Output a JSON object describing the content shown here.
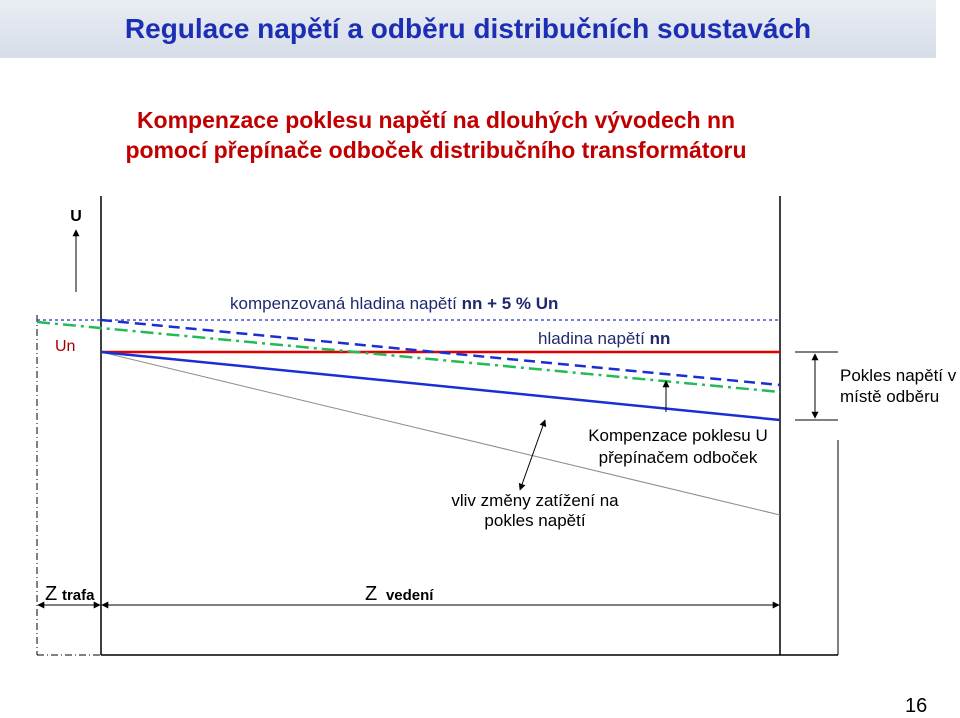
{
  "header": {
    "title": "Regulace napětí a odběru distribučních soustavách"
  },
  "subtitle": {
    "line1": "Kompenzace poklesu napětí na dlouhých vývodech nn",
    "line2": "pomocí přepínače odboček distribučního transformátoru"
  },
  "diagram": {
    "axis_label": "U",
    "nominal_voltage_label": "Un",
    "compensated_level_label": {
      "text": "kompenzovaná hladina napětí",
      "emphasis": "nn + 5 % Un"
    },
    "nominal_level_label": {
      "text": "hladina napětí",
      "emphasis": "nn"
    },
    "voltage_drop_label": [
      "Pokles napětí v",
      "místě odběru"
    ],
    "tap_compensation_label": [
      "Kompenzace poklesu U",
      "přepínačem odboček"
    ],
    "load_effect_label": [
      "vliv změny zatížení na",
      "pokles napětí"
    ],
    "transformer_impedance": {
      "symbol": "Z",
      "subscript": "trafa"
    },
    "line_impedance": {
      "symbol": "Z",
      "subscript": "vedení"
    }
  },
  "page_number": "16",
  "colors": {
    "title": "#1c2fb4",
    "subtitle": "#c00000",
    "nominal_level_line": "#e00000",
    "voltage_line": "#1a2fd0",
    "compensated_line": "#22bb55",
    "label_text": "#1f2a6e",
    "nominal_label": "#a00000"
  }
}
